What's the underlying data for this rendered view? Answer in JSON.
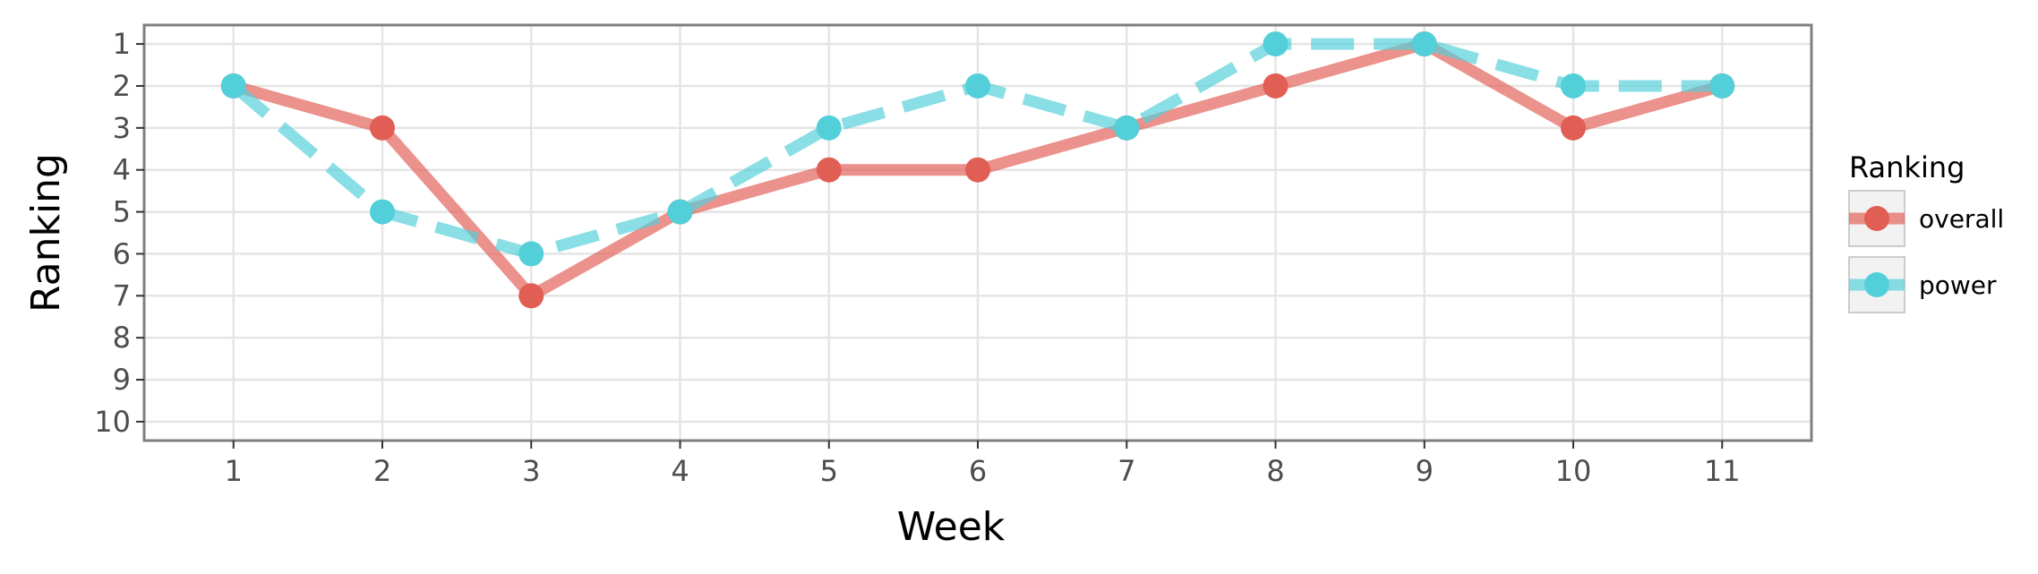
{
  "chart_data": {
    "type": "line",
    "xlabel": "Week",
    "ylabel": "Ranking",
    "x": [
      1,
      2,
      3,
      4,
      5,
      6,
      7,
      8,
      9,
      10,
      11
    ],
    "xlim": [
      0.4,
      11.6
    ],
    "ylim": [
      10.45,
      0.55
    ],
    "y_reversed": true,
    "x_ticks": [
      1,
      2,
      3,
      4,
      5,
      6,
      7,
      8,
      9,
      10,
      11
    ],
    "y_ticks": [
      1,
      2,
      3,
      4,
      5,
      6,
      7,
      8,
      9,
      10
    ],
    "grid": true,
    "legend_title": "Ranking",
    "legend_position": "right",
    "series": [
      {
        "name": "overall",
        "values": [
          2,
          3,
          7,
          5,
          4,
          4,
          3,
          2,
          1,
          3,
          2
        ],
        "color": "#e15e55",
        "line_style": "solid"
      },
      {
        "name": "power",
        "values": [
          2,
          5,
          6,
          5,
          3,
          2,
          3,
          1,
          1,
          2,
          2
        ],
        "color": "#53cfd9",
        "line_style": "dashed"
      }
    ]
  }
}
